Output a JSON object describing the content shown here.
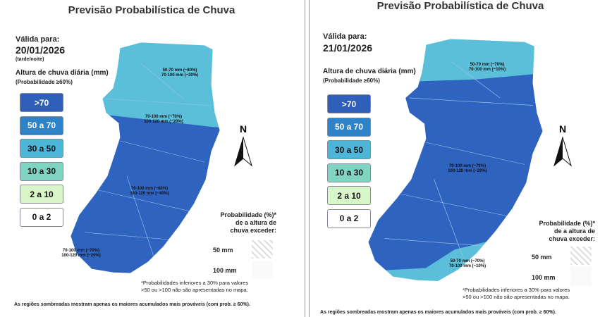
{
  "north": "N",
  "panels": [
    {
      "title": "Previsão Probabilística de Chuva",
      "valid_label": "Válida para:",
      "date": "20/01/2026",
      "period": "(tarde/noite)",
      "rain_label": "Altura de chuva diária (mm)",
      "prob_label": "(Probabilidade ≥60%)",
      "legend": [
        {
          "label": ">70",
          "color": "#2f5fb8"
        },
        {
          "label": "50 a 70",
          "color": "#2e82c8"
        },
        {
          "label": "30 a 50",
          "color": "#4db6d8"
        },
        {
          "label": "10 a 30",
          "color": "#80d4c2"
        },
        {
          "label": "2 a 10",
          "color": "#d9f6c9"
        },
        {
          "label": "0 a 2",
          "color": "#ffffff"
        }
      ],
      "map_labels": [
        [
          "50-70 mm (~80%)",
          "70-100 mm (~30%)"
        ],
        [
          "70-100 mm (~70%)",
          "100-120 mm (~20%)"
        ],
        [
          "70-100 mm (~60%)",
          "100-120 mm (~40%)"
        ],
        [
          "70-100 mm (~70%)",
          "100-120 mm (~20%)"
        ]
      ],
      "prob_legend_title": "Probabilidade (%)*\nde a altura de\nchuva exceder:",
      "thresholds": [
        "50 mm",
        "100 mm"
      ],
      "footnote": "*Probabilidades inferiores a 30% para valores\n>50 ou >100 não são apresentadas no mapa.",
      "note": "As regiões sombreadas mostram apenas os maiores acumulados mais prováveis (com prob. ≥ 60%)."
    },
    {
      "title": "Previsão Probabilística de Chuva",
      "valid_label": "Válida para:",
      "date": "21/01/2026",
      "rain_label": "Altura de chuva diária (mm)",
      "prob_label": "(Probabilidade ≥60%)",
      "legend": [
        {
          "label": ">70",
          "color": "#2f5fb8"
        },
        {
          "label": "50 a 70",
          "color": "#2e82c8"
        },
        {
          "label": "30 a 50",
          "color": "#4db6d8"
        },
        {
          "label": "10 a 30",
          "color": "#80d4c2"
        },
        {
          "label": "2 a 10",
          "color": "#d9f6c9"
        },
        {
          "label": "0 a 2",
          "color": "#ffffff"
        }
      ],
      "map_labels": [
        [
          "50-70 mm (~70%)",
          "70-100 mm (~10%)"
        ],
        [
          "70-100 mm (~70%)",
          "100-120 mm (~20%)"
        ],
        [
          "50-70 mm (~70%)",
          "70-100 mm (~10%)"
        ]
      ],
      "prob_legend_title": "Probabilidade (%)*\nde a altura de\nchuva exceder:",
      "thresholds": [
        "50 mm",
        "100 mm"
      ],
      "footnote": "*Probabilidades inferiores a 30% para valores\n>50 ou >100 não são apresentadas no mapa.",
      "note": "As regiões sombreadas mostram apenas os maiores acumulados mais prováveis (com prob. ≥ 60%)."
    }
  ]
}
